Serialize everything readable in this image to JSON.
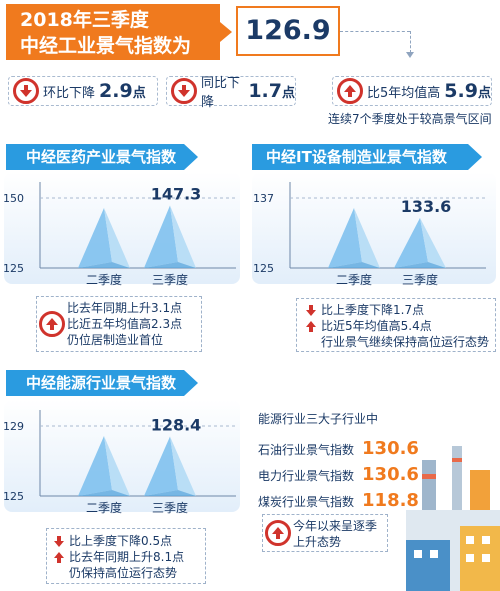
{
  "header": {
    "title_line1": "2018年三季度",
    "title_line2": "中经工业景气指数为",
    "value": "126.9"
  },
  "stats": [
    {
      "label": "环比下降",
      "value": "2.9",
      "unit": "点",
      "direction": "down"
    },
    {
      "label": "同比下降",
      "value": "1.7",
      "unit": "点",
      "direction": "down"
    },
    {
      "label": "比5年均值高",
      "value": "5.9",
      "unit": "点",
      "direction": "up"
    }
  ],
  "stats_note": "连续7个季度处于较高景气区间",
  "colors": {
    "accent": "#f07a1e",
    "panel": "#2a9be0",
    "down": "#d0332c",
    "pyramid": "#7fc1ee"
  },
  "chart_data": [
    {
      "type": "bar",
      "title": "中经医药产业景气指数",
      "categories": [
        "二季度",
        "三季度"
      ],
      "values": [
        null,
        147.3
      ],
      "value_labels": [
        "",
        "147.3"
      ],
      "yticks": [
        "150",
        "125"
      ],
      "ylim": [
        125,
        150
      ],
      "notes": [
        {
          "text": "比去年同期上升3.1点",
          "direction": "up"
        },
        {
          "text": "比近五年均值高2.3点",
          "direction": "up"
        },
        {
          "text": "仍位居制造业首位",
          "direction": "up"
        }
      ]
    },
    {
      "type": "bar",
      "title": "中经IT设备制造业景气指数",
      "categories": [
        "二季度",
        "三季度"
      ],
      "values": [
        null,
        133.6
      ],
      "value_labels": [
        "",
        "133.6"
      ],
      "yticks": [
        "137",
        "125"
      ],
      "ylim": [
        125,
        137
      ],
      "notes": [
        {
          "text": "比上季度下降1.7点",
          "direction": "down"
        },
        {
          "text": "比近5年均值高5.4点",
          "direction": "up"
        },
        {
          "text": "行业景气继续保持高位运行态势",
          "direction": "up"
        }
      ]
    },
    {
      "type": "bar",
      "title": "中经能源行业景气指数",
      "categories": [
        "二季度",
        "三季度"
      ],
      "values": [
        null,
        128.4
      ],
      "value_labels": [
        "",
        "128.4"
      ],
      "yticks": [
        "129",
        "125"
      ],
      "ylim": [
        125,
        129
      ],
      "notes": [
        {
          "text": "比上季度下降0.5点",
          "direction": "down"
        },
        {
          "text": "比去年同期上升8.1点",
          "direction": "up"
        },
        {
          "text": "仍保持高位运行态势",
          "direction": "up"
        }
      ]
    }
  ],
  "energy_sub": {
    "heading": "能源行业三大子行业中",
    "items": [
      {
        "label": "石油行业景气指数",
        "value": "130.6"
      },
      {
        "label": "电力行业景气指数",
        "value": "130.6"
      },
      {
        "label": "煤炭行业景气指数",
        "value": "118.8"
      }
    ],
    "trend_note_line1": "今年以来呈逐季",
    "trend_note_line2": "上升态势"
  }
}
